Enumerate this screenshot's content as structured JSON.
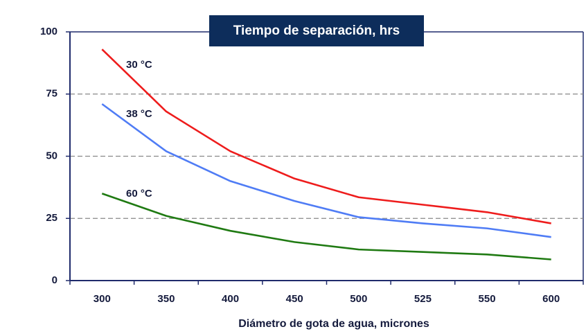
{
  "chart_data": {
    "type": "line",
    "title": "Tiempo de separación, hrs",
    "x_label": "Diámetro de gota de agua, micrones",
    "categories": [
      "300",
      "350",
      "400",
      "450",
      "500",
      "525",
      "550",
      "600"
    ],
    "series": [
      {
        "name": "30 °C",
        "color": "#ee1c1c",
        "values": [
          93,
          68,
          52,
          41,
          33.5,
          30.5,
          27.5,
          23
        ]
      },
      {
        "name": "38 °C",
        "color": "#4f7cf5",
        "values": [
          71,
          52,
          40,
          32,
          25.5,
          23,
          21,
          17.5
        ]
      },
      {
        "name": "60 °C",
        "color": "#1f7a12",
        "values": [
          35,
          26,
          20,
          15.5,
          12.5,
          11.5,
          10.5,
          8.5
        ]
      }
    ],
    "ylim": [
      0,
      100
    ],
    "yticks": [
      0,
      25,
      50,
      75,
      100
    ],
    "grid": true
  }
}
